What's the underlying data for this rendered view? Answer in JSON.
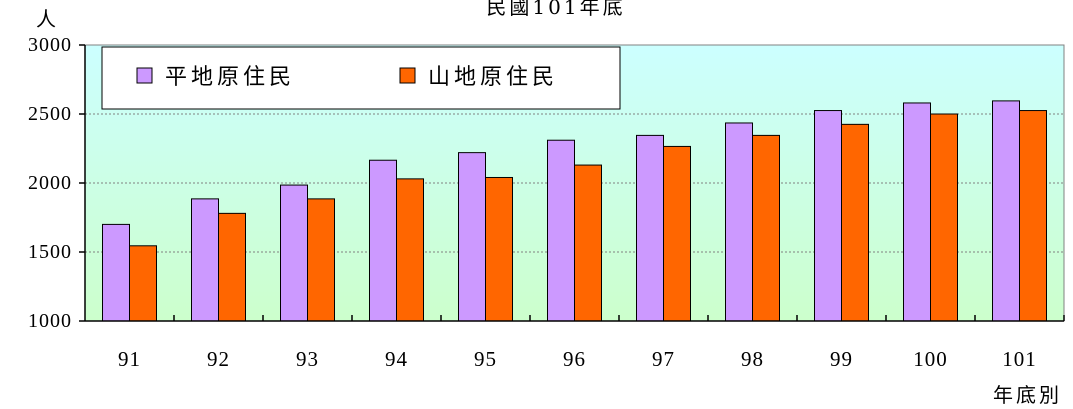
{
  "chart_data": {
    "type": "bar",
    "title": "民國101年底",
    "xlabel": "年底別",
    "ylabel": "人",
    "categories": [
      "91",
      "92",
      "93",
      "94",
      "95",
      "96",
      "97",
      "98",
      "99",
      "100",
      "101"
    ],
    "series": [
      {
        "name": "平地原住民",
        "color": "#cc99ff",
        "values": [
          1700,
          1885,
          1985,
          2165,
          2220,
          2310,
          2345,
          2435,
          2525,
          2580,
          2595
        ]
      },
      {
        "name": "山地原住民",
        "color": "#ff6600",
        "values": [
          1545,
          1780,
          1885,
          2030,
          2040,
          2130,
          2265,
          2345,
          2425,
          2500,
          2525
        ]
      }
    ],
    "ylim": [
      1000,
      3000
    ],
    "yticks": [
      1000,
      1500,
      2000,
      2500,
      3000
    ],
    "grid": true,
    "legend": "top-left",
    "background_gradient": [
      "#ccffff",
      "#ccffcc"
    ]
  }
}
